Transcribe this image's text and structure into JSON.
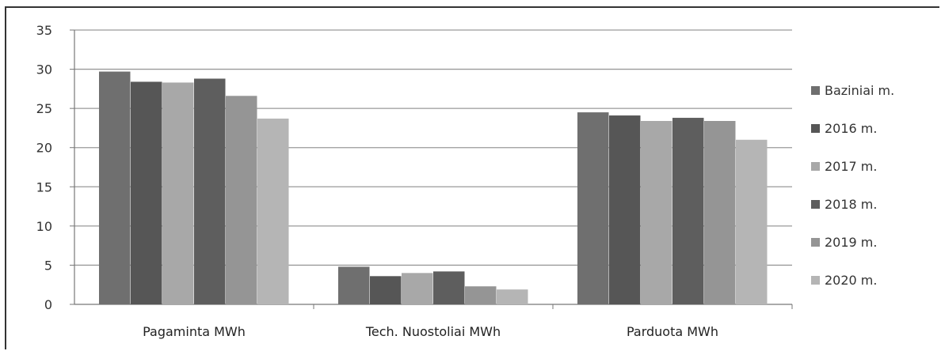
{
  "chart_data": {
    "type": "bar",
    "title": "",
    "xlabel": "",
    "ylabel": "",
    "ylim": [
      0,
      35
    ],
    "yticks": [
      0,
      5,
      10,
      15,
      20,
      25,
      30,
      35
    ],
    "grid": true,
    "legend_position": "right",
    "categories": [
      "Pagaminta MWh",
      "Tech. Nuostoliai MWh",
      "Parduota MWh"
    ],
    "series": [
      {
        "name": "Baziniai m.",
        "color": "#6f6f6f",
        "values": [
          29.7,
          4.8,
          24.5
        ]
      },
      {
        "name": "2016 m.",
        "color": "#565656",
        "values": [
          28.4,
          3.6,
          24.1
        ]
      },
      {
        "name": "2017 m.",
        "color": "#a8a8a8",
        "values": [
          28.3,
          4.0,
          23.4
        ]
      },
      {
        "name": "2018 m.",
        "color": "#5e5e5e",
        "values": [
          28.8,
          4.2,
          23.8
        ]
      },
      {
        "name": "2019 m.",
        "color": "#959595",
        "values": [
          26.6,
          2.3,
          23.4
        ]
      },
      {
        "name": "2020 m.",
        "color": "#b5b5b5",
        "values": [
          23.7,
          1.9,
          21.0
        ]
      }
    ]
  }
}
